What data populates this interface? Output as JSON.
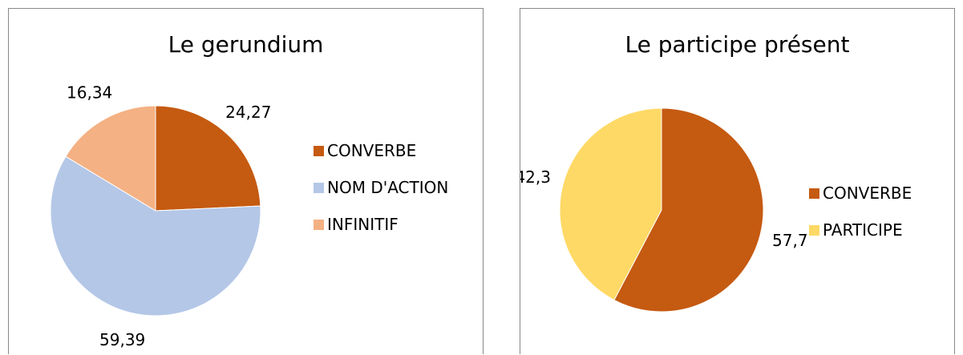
{
  "chart_data": [
    {
      "type": "pie",
      "title": "Le gerundium",
      "categories": [
        "CONVERBE",
        "NOM D'ACTION",
        "INFINITIF"
      ],
      "values": [
        24.27,
        59.39,
        16.34
      ],
      "value_labels": [
        "24,27",
        "59,39",
        "16,34"
      ],
      "colors": [
        "#c55a11",
        "#b4c7e7",
        "#f4b183"
      ]
    },
    {
      "type": "pie",
      "title": "Le participe présent",
      "categories": [
        "CONVERBE",
        "PARTICIPE"
      ],
      "values": [
        57.7,
        42.3
      ],
      "value_labels": [
        "57,7",
        "42,3"
      ],
      "colors": [
        "#c55a11",
        "#ffd966"
      ]
    }
  ]
}
